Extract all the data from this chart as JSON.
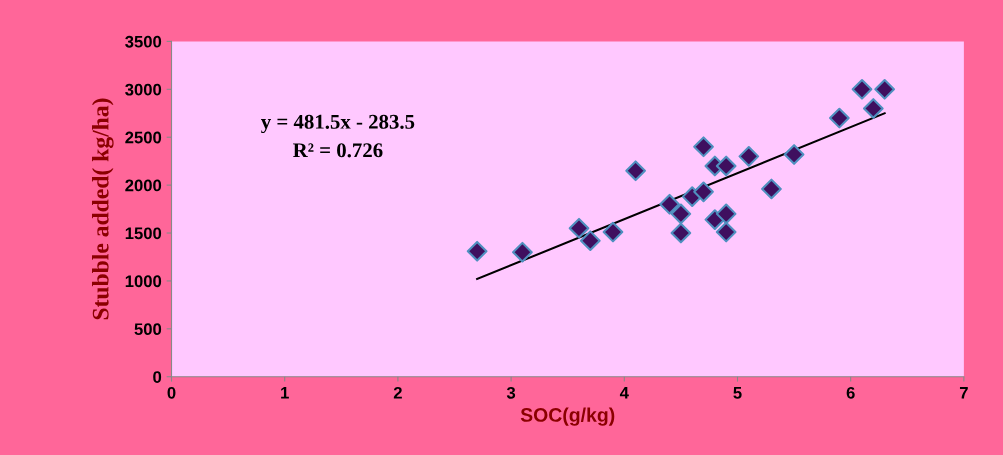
{
  "chart_data": {
    "type": "scatter",
    "xlabel": "SOC(g/kg)",
    "ylabel": "Stubble added( kg/ha)",
    "xlim": [
      0,
      7
    ],
    "xticks": [
      0,
      1,
      2,
      3,
      4,
      5,
      6,
      7
    ],
    "ylim": [
      0,
      3500
    ],
    "yticks": [
      0,
      500,
      1000,
      1500,
      2000,
      2500,
      3000,
      3500
    ],
    "grid": false,
    "legend": false,
    "annotations": [
      "y = 481.5x - 283.5",
      "R² = 0.726"
    ],
    "series": [
      {
        "marker": "diamond",
        "color": "#3f0f5f",
        "x": [
          2.7,
          3.1,
          3.6,
          3.7,
          3.9,
          4.1,
          4.4,
          4.5,
          4.5,
          4.6,
          4.7,
          4.7,
          4.8,
          4.8,
          4.9,
          4.9,
          4.9,
          5.1,
          5.3,
          5.5,
          5.9,
          6.1,
          6.2,
          6.3
        ],
        "values": [
          1310,
          1300,
          1550,
          1420,
          1510,
          2150,
          1800,
          1700,
          1500,
          1880,
          1930,
          2400,
          2200,
          1640,
          2200,
          1700,
          1510,
          2300,
          1960,
          2320,
          2700,
          3000,
          2800,
          3000
        ]
      },
      {
        "type": "line",
        "color": "#000000",
        "x": [
          2.7,
          6.3
        ],
        "values": [
          1020,
          2750
        ]
      }
    ]
  }
}
